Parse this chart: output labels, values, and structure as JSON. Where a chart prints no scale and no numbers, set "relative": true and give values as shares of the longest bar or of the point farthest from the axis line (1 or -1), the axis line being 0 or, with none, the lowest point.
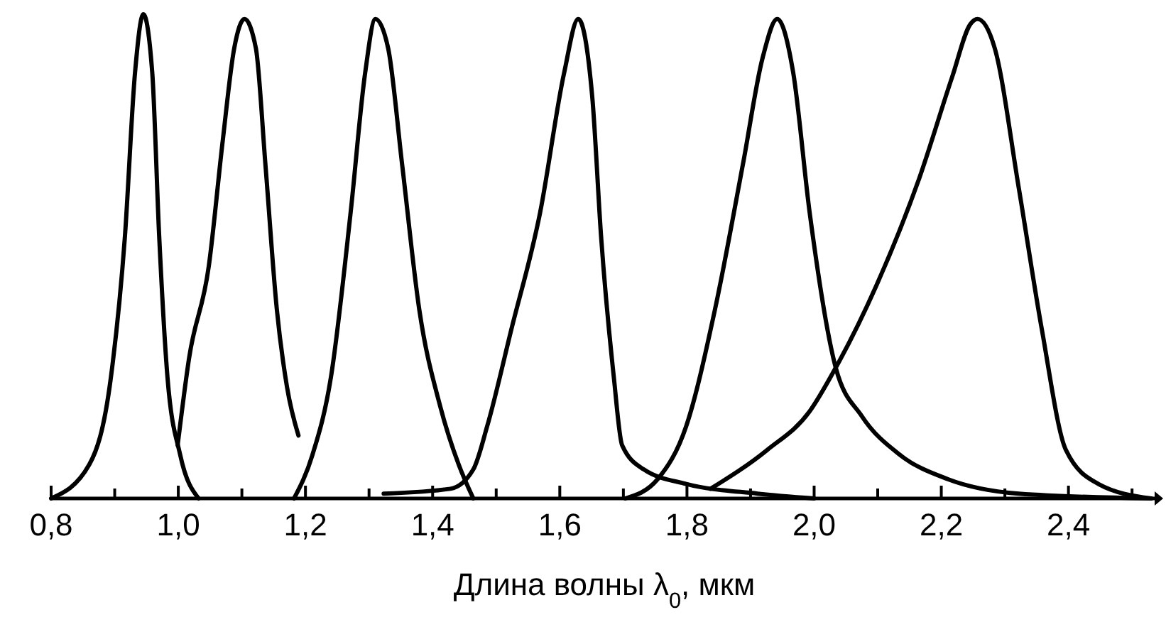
{
  "chart_data": {
    "type": "line",
    "relative": true,
    "xlabel": "Длина волны λ$_{0}$, мкм",
    "xlim": [
      0.8,
      2.54
    ],
    "line_style": "solid",
    "xticks": [
      {
        "value": 0.8,
        "label": "0,8"
      },
      {
        "value": 0.9,
        "label": null
      },
      {
        "value": 1.0,
        "label": "1,0"
      },
      {
        "value": 1.1,
        "label": null
      },
      {
        "value": 1.2,
        "label": "1,2"
      },
      {
        "value": 1.3,
        "label": null
      },
      {
        "value": 1.4,
        "label": "1,4"
      },
      {
        "value": 1.5,
        "label": null
      },
      {
        "value": 1.6,
        "label": "1,6"
      },
      {
        "value": 1.7,
        "label": null
      },
      {
        "value": 1.8,
        "label": "1,8"
      },
      {
        "value": 1.9,
        "label": null
      },
      {
        "value": 2.0,
        "label": "2,0"
      },
      {
        "value": 2.1,
        "label": null
      },
      {
        "value": 2.2,
        "label": "2,2"
      },
      {
        "value": 2.3,
        "label": null
      },
      {
        "value": 2.4,
        "label": "2,4"
      },
      {
        "value": 2.5,
        "label": null
      }
    ],
    "series": [
      {
        "color": "#000000",
        "x": [
          0.8,
          0.86,
          0.894,
          0.916,
          0.932,
          0.945,
          0.959,
          0.97,
          0.983,
          1.003,
          1.032
        ],
        "values": [
          0,
          0.07,
          0.25,
          0.54,
          0.88,
          1.0,
          0.88,
          0.54,
          0.25,
          0.09,
          0
        ]
      },
      {
        "color": "#000000",
        "x": [
          0.999,
          1.017,
          1.048,
          1.07,
          1.088,
          1.104,
          1.122,
          1.137,
          1.155,
          1.171,
          1.189
        ],
        "values": [
          0.11,
          0.29,
          0.48,
          0.74,
          0.93,
          0.99,
          0.93,
          0.69,
          0.39,
          0.23,
          0.13
        ]
      },
      {
        "color": "#000000",
        "x": [
          1.182,
          1.211,
          1.24,
          1.271,
          1.294,
          1.31,
          1.33,
          1.352,
          1.379,
          1.412,
          1.441,
          1.464
        ],
        "values": [
          0,
          0.09,
          0.25,
          0.59,
          0.88,
          0.99,
          0.93,
          0.69,
          0.39,
          0.19,
          0.07,
          0
        ]
      },
      {
        "color": "#000000",
        "x": [
          1.323,
          1.428,
          1.464,
          1.486,
          1.524,
          1.569,
          1.607,
          1.629,
          1.651,
          1.665,
          1.685,
          1.698,
          1.732,
          1.799,
          1.911,
          2.0
        ],
        "values": [
          0.01,
          0.02,
          0.06,
          0.15,
          0.35,
          0.59,
          0.88,
          0.99,
          0.83,
          0.54,
          0.25,
          0.11,
          0.06,
          0.03,
          0.01,
          0
        ]
      },
      {
        "color": "#000000",
        "x": [
          1.703,
          1.754,
          1.799,
          1.844,
          1.888,
          1.919,
          1.942,
          1.967,
          1.993,
          2.034,
          2.075,
          2.135,
          2.21,
          2.322,
          2.53
        ],
        "values": [
          0,
          0.04,
          0.15,
          0.39,
          0.69,
          0.91,
          0.99,
          0.88,
          0.59,
          0.27,
          0.17,
          0.09,
          0.04,
          0.01,
          0
        ]
      },
      {
        "color": "#000000",
        "x": [
          1.837,
          1.926,
          1.993,
          2.034,
          2.098,
          2.165,
          2.217,
          2.246,
          2.257,
          2.284,
          2.322,
          2.358,
          2.396,
          2.447,
          2.53
        ],
        "values": [
          0.02,
          0.1,
          0.18,
          0.27,
          0.44,
          0.66,
          0.87,
          0.98,
          0.99,
          0.93,
          0.64,
          0.35,
          0.1,
          0.03,
          0
        ]
      }
    ]
  }
}
